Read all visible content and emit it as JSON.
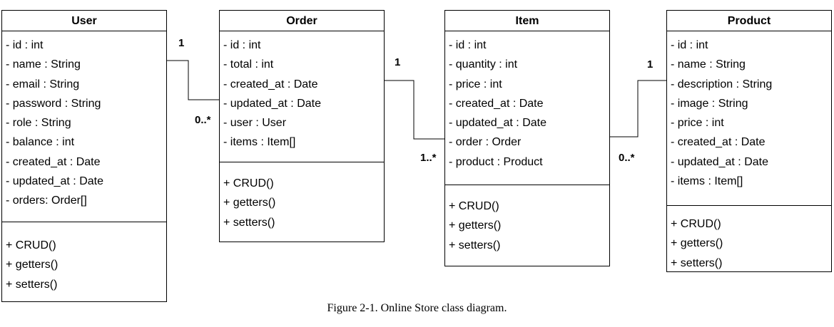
{
  "classes": {
    "user": {
      "name": "User",
      "attributes": [
        "- id : int",
        "- name : String",
        "- email : String",
        "- password : String",
        "- role : String",
        "- balance : int",
        "- created_at : Date",
        "- updated_at : Date",
        "- orders: Order[]"
      ],
      "methods": [
        "+ CRUD()",
        "+ getters()",
        "+ setters()"
      ]
    },
    "order": {
      "name": "Order",
      "attributes": [
        "- id : int",
        "- total : int",
        "- created_at : Date",
        "- updated_at : Date",
        "- user : User",
        "- items : Item[]"
      ],
      "methods": [
        "+ CRUD()",
        "+ getters()",
        "+ setters()"
      ]
    },
    "item": {
      "name": "Item",
      "attributes": [
        "- id : int",
        "- quantity : int",
        "- price : int",
        "- created_at : Date",
        "- updated_at : Date",
        "- order : Order",
        "- product : Product"
      ],
      "methods": [
        "+ CRUD()",
        "+ getters()",
        "+ setters()"
      ]
    },
    "product": {
      "name": "Product",
      "attributes": [
        "- id : int",
        "- name : String",
        "- description : String",
        "- image : String",
        "- price : int",
        "- created_at : Date",
        "- updated_at : Date",
        "- items : Item[]"
      ],
      "methods": [
        "+ CRUD()",
        "+ getters()",
        "+ setters()"
      ]
    }
  },
  "associations": {
    "user_order": {
      "source_multiplicity": "1",
      "target_multiplicity": "0..*"
    },
    "order_item": {
      "source_multiplicity": "1",
      "target_multiplicity": "1..*"
    },
    "product_item": {
      "source_multiplicity": "1",
      "target_multiplicity": "0..*"
    }
  },
  "caption": "Figure 2-1. Online Store class diagram."
}
